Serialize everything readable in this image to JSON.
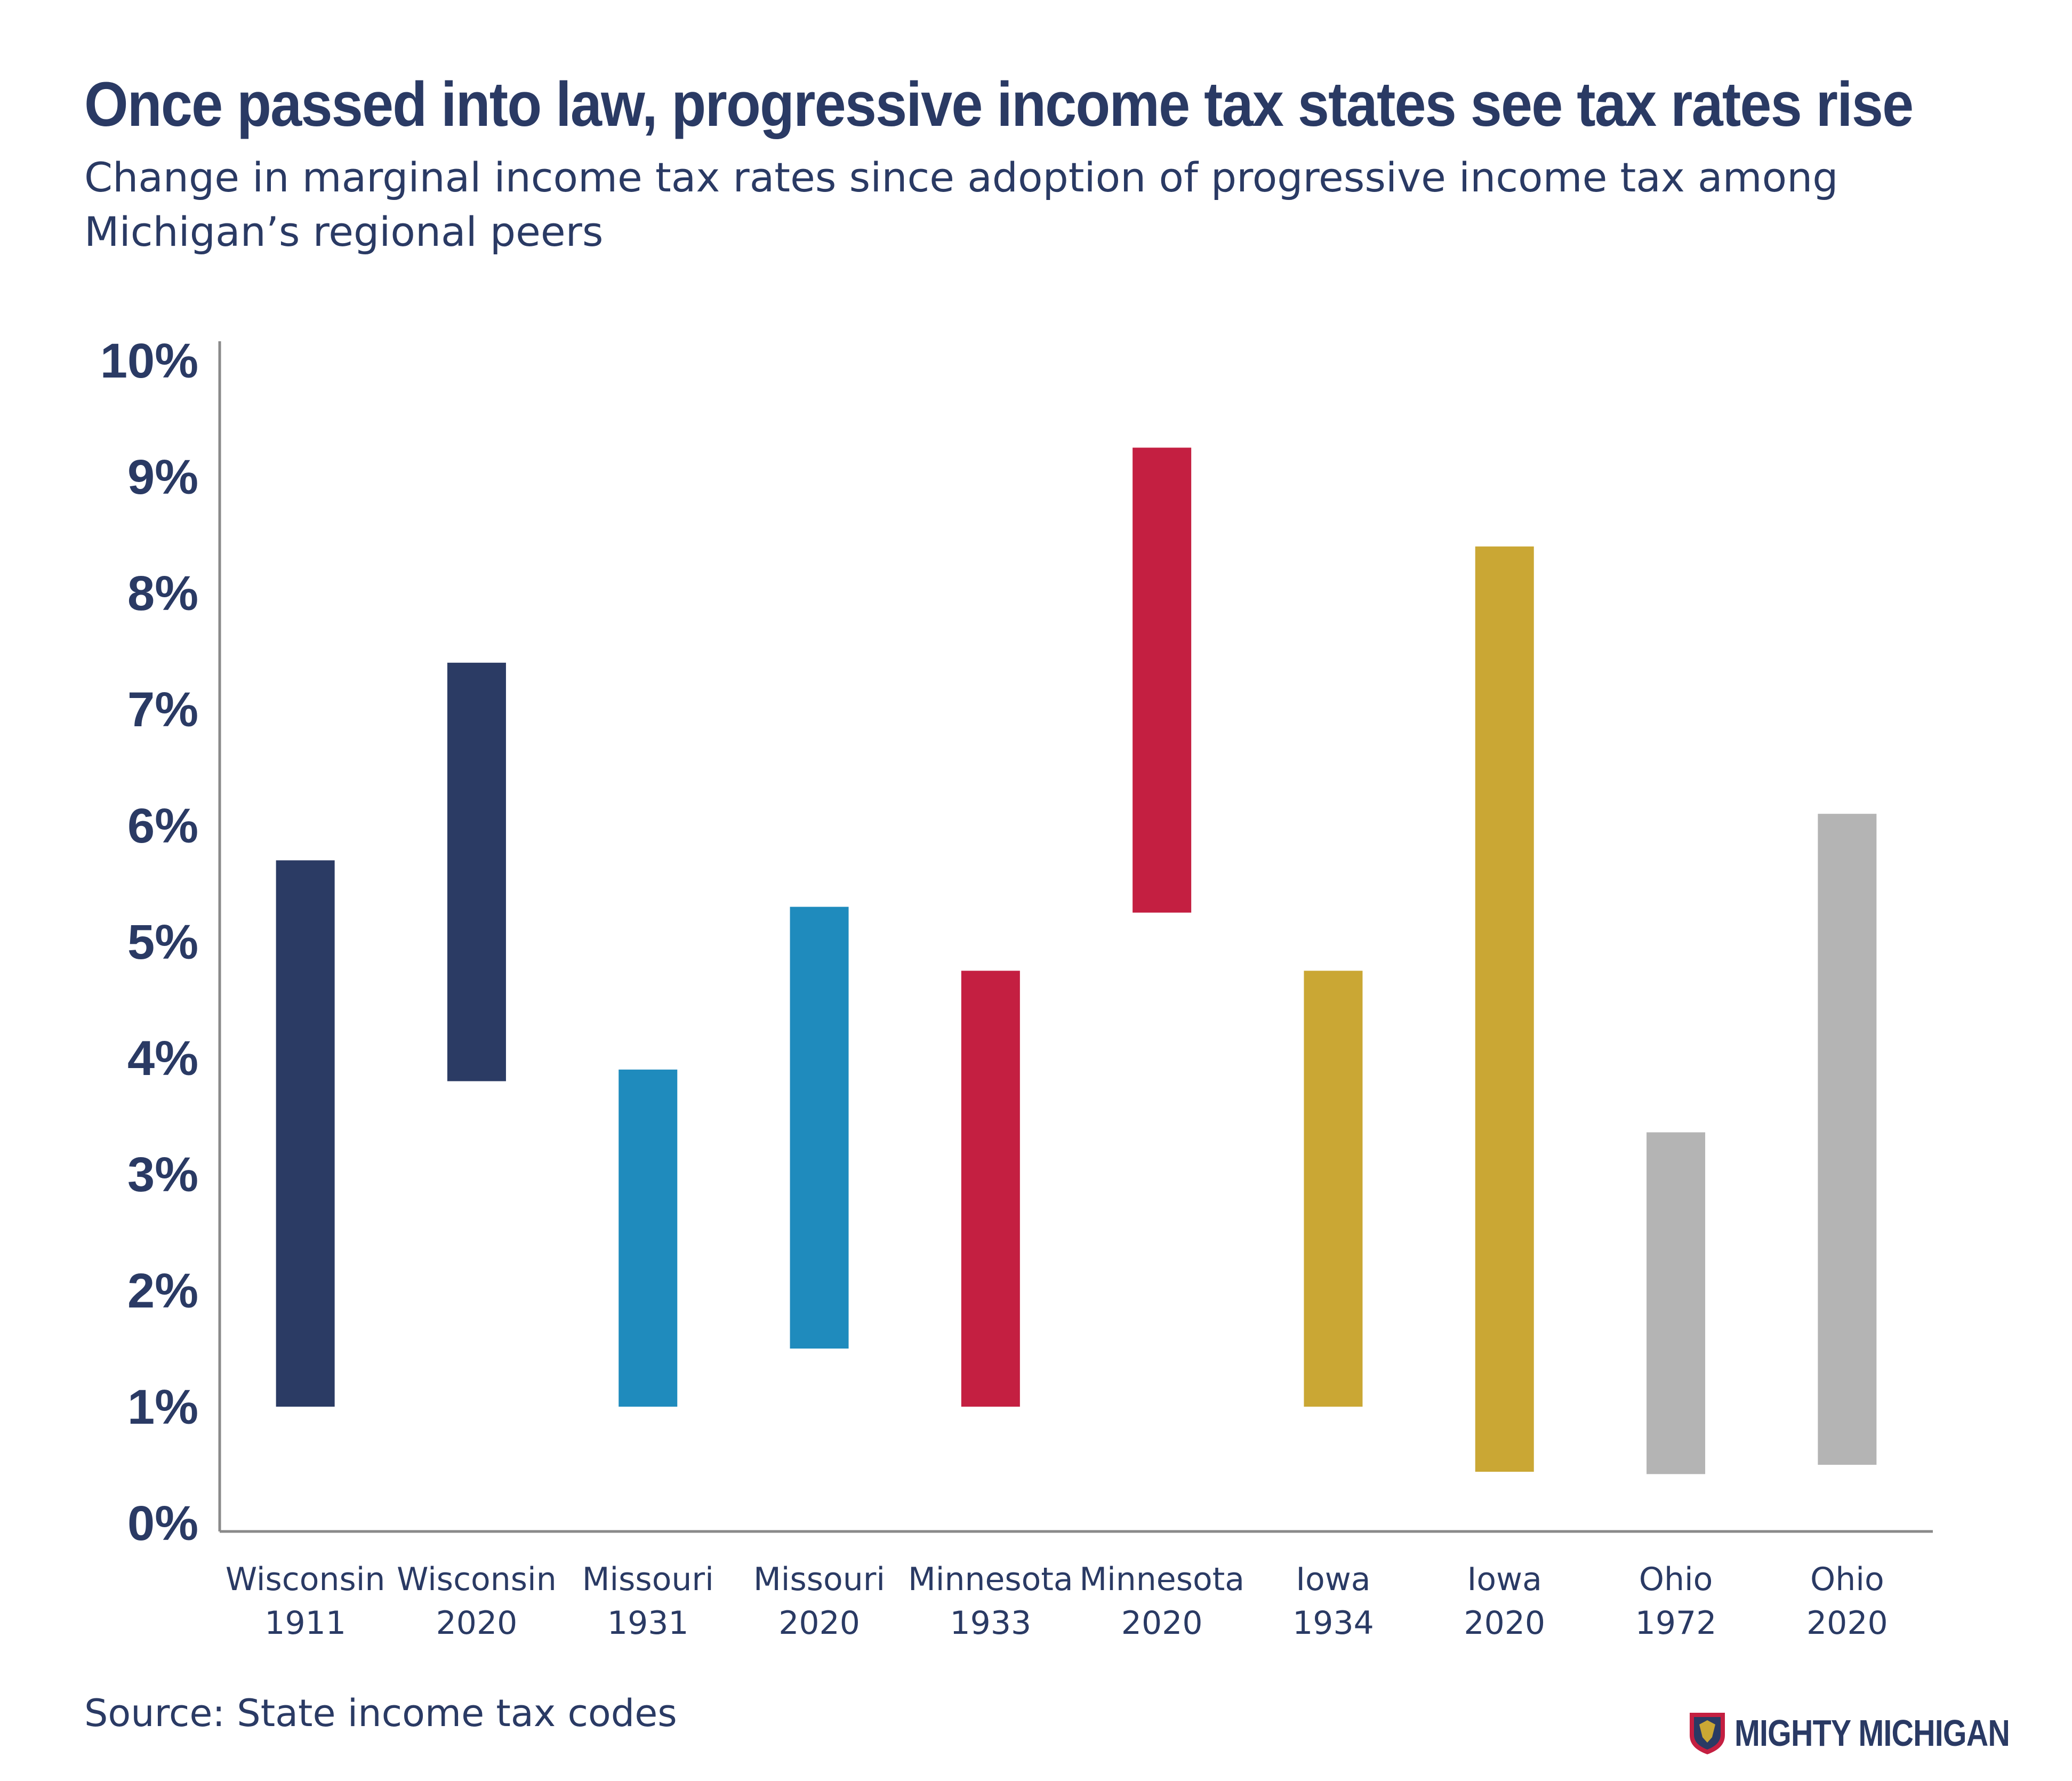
{
  "header": {
    "title": "Once passed into law, progressive income tax states see tax rates rise",
    "subtitle": "Change in marginal income tax rates since adoption of progressive income tax among Michigan’s regional peers"
  },
  "chart_data": {
    "type": "bar",
    "subtype": "floating-range",
    "title": "Once passed into law, progressive income tax states see tax rates rise",
    "subtitle": "Change in marginal income tax rates since adoption of progressive income tax among Michigan’s regional peers",
    "xlabel": "",
    "ylabel": "",
    "ylim": [
      0,
      10
    ],
    "yticks": [
      "0%",
      "1%",
      "2%",
      "3%",
      "4%",
      "5%",
      "6%",
      "7%",
      "8%",
      "9%",
      "10%"
    ],
    "grid": false,
    "legend": "none",
    "categories": [
      {
        "state": "Wisconsin",
        "year": "1911"
      },
      {
        "state": "Wisconsin",
        "year": "2020"
      },
      {
        "state": "Missouri",
        "year": "1931"
      },
      {
        "state": "Missouri",
        "year": "2020"
      },
      {
        "state": "Minnesota",
        "year": "1933"
      },
      {
        "state": "Minnesota",
        "year": "2020"
      },
      {
        "state": "Iowa",
        "year": "1934"
      },
      {
        "state": "Iowa",
        "year": "2020"
      },
      {
        "state": "Ohio",
        "year": "1972"
      },
      {
        "state": "Ohio",
        "year": "2020"
      }
    ],
    "ranges": [
      {
        "low": 1.0,
        "high": 5.7,
        "color": "#2b3b64"
      },
      {
        "low": 3.8,
        "high": 7.4,
        "color": "#2b3b64"
      },
      {
        "low": 1.0,
        "high": 3.9,
        "color": "#1f8bbd"
      },
      {
        "low": 1.5,
        "high": 5.3,
        "color": "#1f8bbd"
      },
      {
        "low": 1.0,
        "high": 4.75,
        "color": "#c41f41"
      },
      {
        "low": 5.25,
        "high": 9.25,
        "color": "#c41f41"
      },
      {
        "low": 1.0,
        "high": 4.75,
        "color": "#caa734"
      },
      {
        "low": 0.44,
        "high": 8.4,
        "color": "#caa734"
      },
      {
        "low": 0.42,
        "high": 3.36,
        "color": "#b4b4b4"
      },
      {
        "low": 0.5,
        "high": 6.1,
        "color": "#b4b4b4"
      }
    ]
  },
  "footer": {
    "source": "Source: State income tax codes",
    "logo_text": "MIGHTY MICHIGAN",
    "logo_icon": "shield-icon"
  }
}
